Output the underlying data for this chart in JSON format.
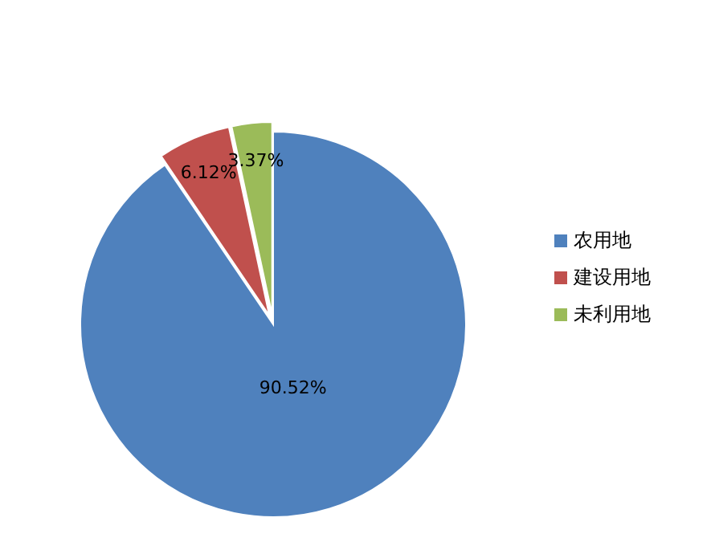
{
  "chart_data": {
    "type": "pie",
    "categories": [
      "农用地",
      "建设用地",
      "未利用地"
    ],
    "values": [
      90.52,
      6.12,
      3.37
    ],
    "colors": [
      "#4f81bd",
      "#c0504d",
      "#9bbb59"
    ],
    "value_labels": [
      "90.52%",
      "6.12%",
      "3.37%"
    ],
    "legend": "right"
  }
}
